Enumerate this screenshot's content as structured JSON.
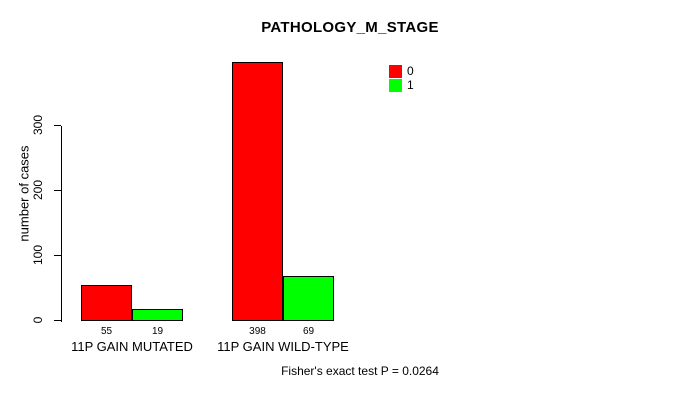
{
  "chart_data": {
    "type": "bar",
    "title": "PATHOLOGY_M_STAGE",
    "ylabel": "number of cases",
    "xlabel": "",
    "categories": [
      "11P GAIN MUTATED",
      "11P GAIN WILD-TYPE"
    ],
    "series": [
      {
        "name": "0",
        "color": "#FF0000",
        "values": [
          55,
          398
        ]
      },
      {
        "name": "1",
        "color": "#00FF00",
        "values": [
          19,
          69
        ]
      }
    ],
    "bar_value_labels": [
      [
        "55",
        "19"
      ],
      [
        "398",
        "69"
      ]
    ],
    "yticks": [
      "0",
      "100",
      "200",
      "300"
    ],
    "ytick_values": [
      0,
      100,
      200,
      300
    ],
    "ylim": [
      0,
      400
    ],
    "grid": false,
    "legend_position": "top-right",
    "annotation": "Fisher's exact test P = 0.0264"
  },
  "colors": {
    "background": "#FFFFFF",
    "axis": "#000000",
    "text": "#000000",
    "series_0": "#FF0000",
    "series_1": "#00FF00"
  }
}
